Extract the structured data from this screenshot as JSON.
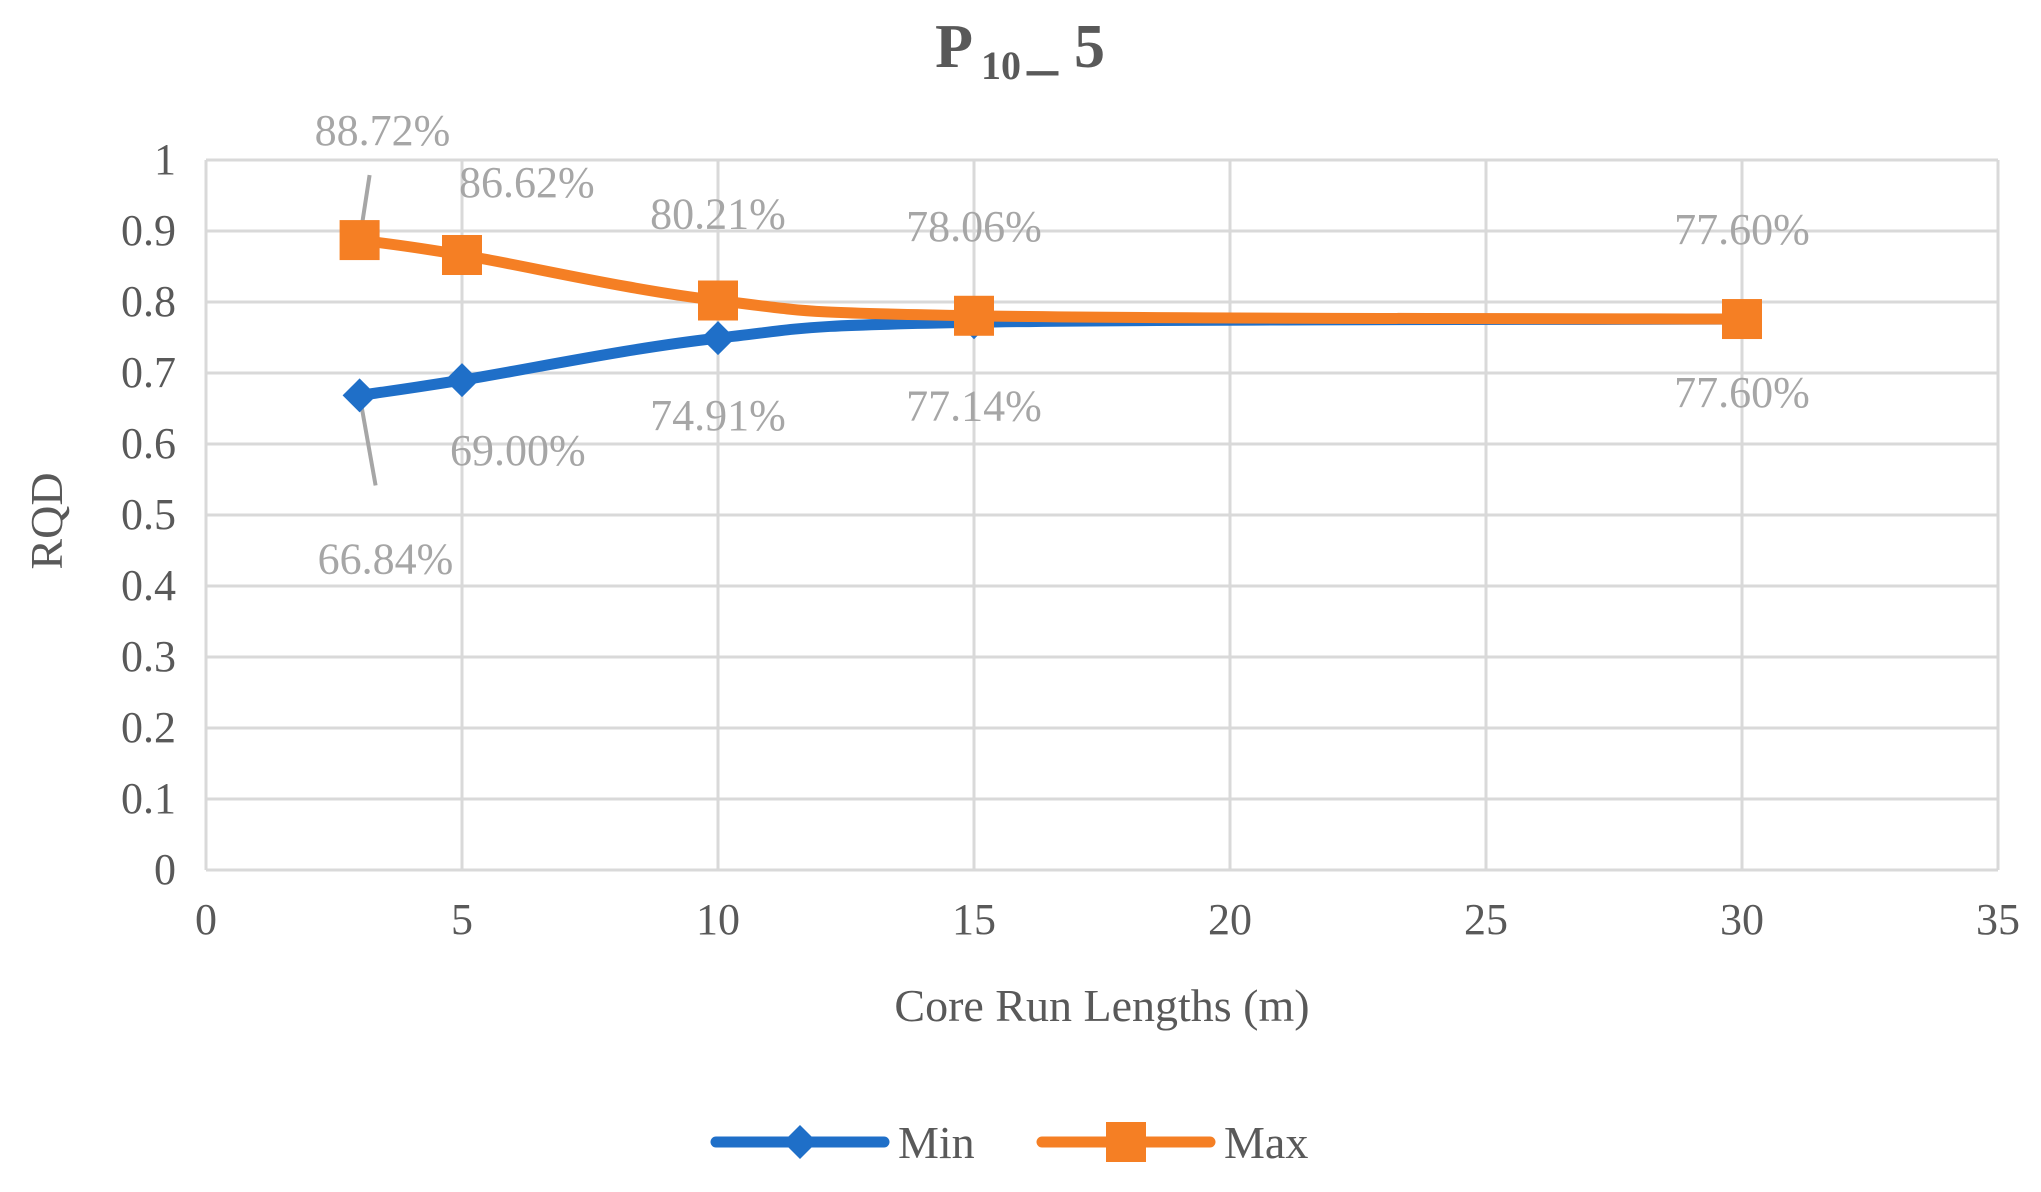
{
  "chart_data": {
    "type": "line",
    "title": {
      "main": "P",
      "subscript": "10",
      "underscore": "_",
      "suffix": "5"
    },
    "xlabel": "Core Run Lengths (m)",
    "ylabel": "RQD",
    "xlim": [
      0,
      35
    ],
    "ylim": [
      0,
      1
    ],
    "x_ticks": [
      "0",
      "5",
      "10",
      "15",
      "20",
      "25",
      "30",
      "35"
    ],
    "y_ticks": [
      "0",
      "0.1",
      "0.2",
      "0.3",
      "0.4",
      "0.5",
      "0.6",
      "0.7",
      "0.8",
      "0.9",
      "1"
    ],
    "grid": true,
    "legend_position": "bottom",
    "series": [
      {
        "name": "Min",
        "color": "#1f6fc8",
        "marker": "diamond",
        "x": [
          3,
          5,
          10,
          15,
          30
        ],
        "values": [
          0.6684,
          0.69,
          0.7491,
          0.7714,
          0.776
        ],
        "labels": [
          "66.84%",
          "69.00%",
          "74.91%",
          "77.14%",
          "77.60%"
        ]
      },
      {
        "name": "Max",
        "color": "#f57f24",
        "marker": "square",
        "x": [
          3,
          5,
          10,
          15,
          30
        ],
        "values": [
          0.8872,
          0.8662,
          0.8021,
          0.7806,
          0.776
        ],
        "labels": [
          "88.72%",
          "86.62%",
          "80.21%",
          "78.06%",
          "77.60%"
        ]
      }
    ]
  }
}
